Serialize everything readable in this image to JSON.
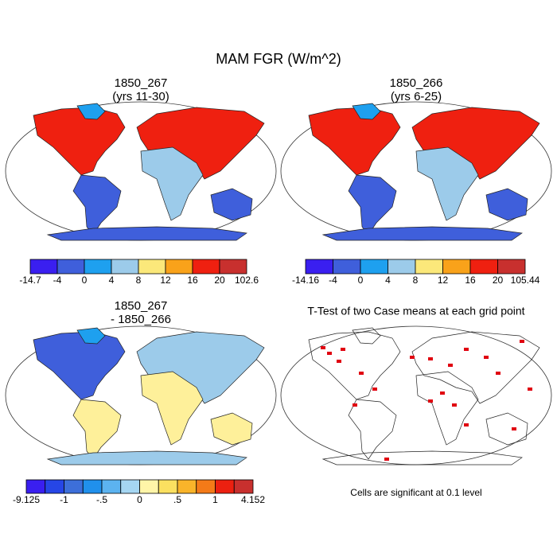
{
  "title": "MAM FGR (W/m^2)",
  "panels": [
    {
      "title": [
        "1850_267",
        "(yrs 11-30)"
      ],
      "colorbar": {
        "colors": [
          "#3a1ff0",
          "#3f5fdb",
          "#1ea0ef",
          "#9ccbea",
          "#fbe87a",
          "#f9a21a",
          "#ef2010",
          "#c8302e"
        ],
        "labels": [
          "-14.7",
          "-4",
          "0",
          "4",
          "8",
          "12",
          "16",
          "20",
          "102.6"
        ]
      }
    },
    {
      "title": [
        "1850_266",
        "(yrs 6-25)"
      ],
      "colorbar": {
        "colors": [
          "#3a1ff0",
          "#3f5fdb",
          "#1ea0ef",
          "#9ccbea",
          "#fbe87a",
          "#f9a21a",
          "#ef2010",
          "#c8302e"
        ],
        "labels": [
          "-14.16",
          "-4",
          "0",
          "4",
          "8",
          "12",
          "16",
          "20",
          "105.44"
        ]
      }
    },
    {
      "title": [
        "1850_267",
        "- 1850_266"
      ],
      "colorbar": {
        "colors": [
          "#3a1ff0",
          "#2646e6",
          "#3d6fd9",
          "#2090ec",
          "#5cb3f0",
          "#a5d6f2",
          "#fff5a8",
          "#fbe060",
          "#f9b42a",
          "#f47a18",
          "#ec2010",
          "#c8302e"
        ],
        "labels": [
          "-9.125",
          "-1",
          "-.5",
          "0",
          ".5",
          "1",
          "4.152"
        ]
      }
    }
  ],
  "ttest": {
    "title": "T-Test of two Case means at each grid point",
    "note": "Cells are significant at 0.1 level"
  }
}
